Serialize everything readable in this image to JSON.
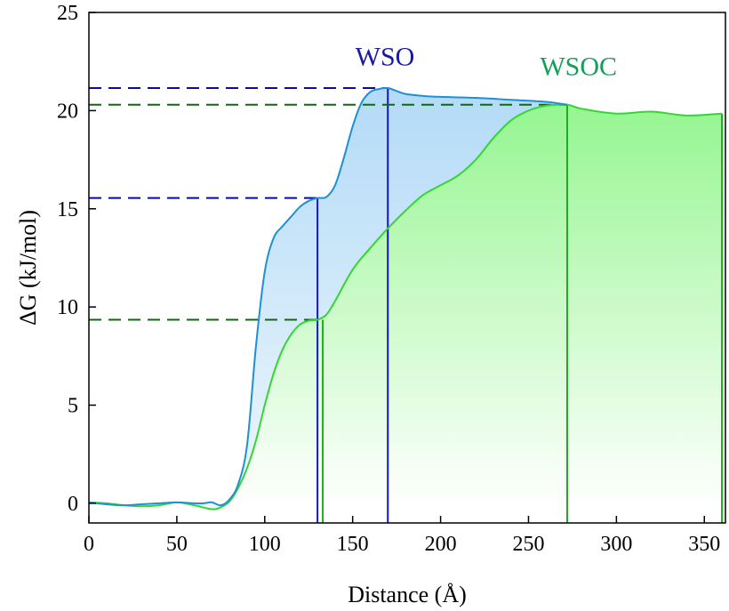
{
  "chart_data": {
    "type": "area",
    "xlabel": "Distance (Å)",
    "ylabel": "ΔG (kJ/mol)",
    "xlim": [
      0,
      362
    ],
    "ylim": [
      -1,
      25
    ],
    "x_ticks": [
      0,
      50,
      100,
      150,
      200,
      250,
      300,
      350
    ],
    "y_ticks": [
      0,
      5,
      10,
      15,
      20,
      25
    ],
    "grid": false,
    "legend": "none",
    "series": [
      {
        "name": "WSO",
        "color": "#1f8fd6",
        "fill_color": "#bfe0f7",
        "x": [
          0,
          10,
          20,
          30,
          40,
          50,
          60,
          65,
          70,
          75,
          80,
          85,
          90,
          95,
          100,
          105,
          110,
          115,
          120,
          125,
          130,
          135,
          140,
          145,
          150,
          155,
          160,
          165,
          170,
          175,
          180,
          190,
          200,
          220,
          240,
          260,
          272
        ],
        "y": [
          0.05,
          -0.05,
          -0.1,
          -0.05,
          0.0,
          0.05,
          0.0,
          0.0,
          0.05,
          -0.1,
          0.2,
          1.0,
          3.0,
          8.0,
          11.8,
          13.5,
          14.1,
          14.6,
          15.1,
          15.4,
          15.55,
          15.6,
          16.2,
          17.6,
          19.2,
          20.4,
          20.95,
          21.1,
          21.15,
          21.0,
          20.85,
          20.75,
          20.7,
          20.65,
          20.55,
          20.45,
          20.3
        ]
      },
      {
        "name": "WSOC",
        "color": "#33d633",
        "fill_color": "#a8f5a0",
        "x": [
          0,
          10,
          20,
          30,
          40,
          50,
          60,
          70,
          75,
          80,
          85,
          90,
          95,
          100,
          105,
          110,
          115,
          120,
          125,
          130,
          135,
          140,
          150,
          160,
          170,
          180,
          190,
          200,
          210,
          220,
          230,
          240,
          250,
          260,
          272,
          280,
          300,
          320,
          340,
          360
        ],
        "y": [
          0.05,
          0.0,
          -0.1,
          -0.15,
          -0.1,
          0.05,
          -0.1,
          -0.3,
          -0.2,
          0.1,
          0.8,
          1.8,
          3.2,
          5.0,
          6.6,
          7.8,
          8.6,
          9.1,
          9.3,
          9.35,
          9.6,
          10.3,
          11.9,
          13.0,
          14.0,
          14.9,
          15.7,
          16.2,
          16.7,
          17.5,
          18.6,
          19.5,
          20.0,
          20.25,
          20.3,
          20.1,
          19.85,
          19.95,
          19.75,
          19.85
        ]
      }
    ],
    "annotations": [
      {
        "text": "WSO",
        "color": "#1a1a9e",
        "x": 150,
        "y": 22.3
      },
      {
        "text": "WSOC",
        "color": "#14a05a",
        "x": 255,
        "y": 21.8
      }
    ],
    "reference_lines": [
      {
        "series": "WSO",
        "color": "#0a0a9e",
        "x": 130,
        "y": 15.55
      },
      {
        "series": "WSO",
        "color": "#0a0a9e",
        "x": 170,
        "y": 21.15
      },
      {
        "series": "WSOC",
        "color": "#0f6a0f",
        "x": 133,
        "y": 9.35
      },
      {
        "series": "WSOC",
        "color": "#0f6a0f",
        "x": 272,
        "y": 20.3
      }
    ],
    "end_marker_x": 360
  }
}
